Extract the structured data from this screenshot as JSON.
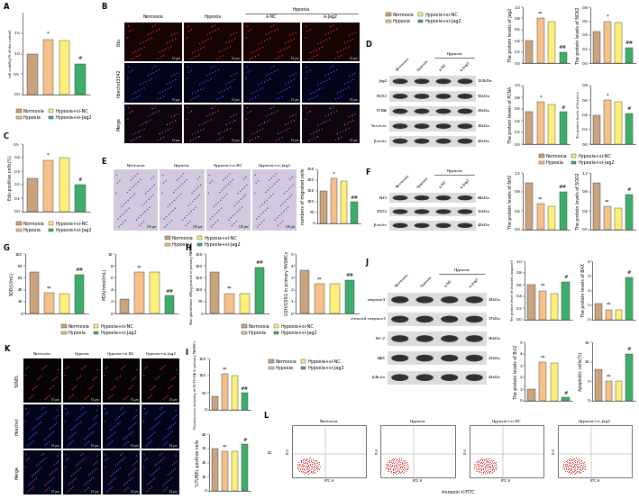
{
  "chart_data": [
    {
      "type": "bar",
      "ylabel": "cell viability(% of the control)",
      "categories": [
        "Normoxia",
        "Hypoxia",
        "Hypoxia+si-NC",
        "Hypoxia+si-Jag2"
      ],
      "values": [
        1.0,
        1.35,
        1.32,
        0.75
      ],
      "colors": [
        "#c9a27e",
        "#f5c08a",
        "#fdf07a",
        "#3dae6a"
      ],
      "ylim": [
        0,
        2.0
      ],
      "yticks": [
        0.0,
        0.5,
        1.0,
        1.5
      ],
      "tick_labels": "y",
      "annotations": [
        null,
        "*",
        null,
        "#"
      ],
      "legend": "center"
    },
    {
      "type": "bar",
      "ylabel": "Edu positive cells(%)",
      "categories": [
        "Normoxia",
        "Hypoxia",
        "Hypoxia+si-NC",
        "Hypoxia+si-Jag2"
      ],
      "values": [
        0.25,
        0.38,
        0.4,
        0.2
      ],
      "colors": [
        "#c9a27e",
        "#f5c08a",
        "#fdf07a",
        "#3dae6a"
      ],
      "ylim": [
        0,
        0.5
      ],
      "yticks": [
        0.0,
        0.1,
        0.2,
        0.3,
        0.4,
        0.5
      ],
      "tick_labels": "y",
      "annotations": [
        null,
        "*",
        null,
        "#"
      ],
      "legend": "center"
    },
    {
      "type": "bar",
      "ylabel": "The protein levels of Jag2",
      "categories": [
        "Normoxia",
        "Hypoxia",
        "Hypoxia+si-NC",
        "Hypoxia+si-Jag2"
      ],
      "values": [
        0.4,
        0.8,
        0.75,
        0.2
      ],
      "colors": [
        "#c9a27e",
        "#f5c08a",
        "#fdf07a",
        "#3dae6a"
      ],
      "ylim": [
        0,
        1.0
      ],
      "yticks": [
        0.0,
        0.2,
        0.4,
        0.6,
        0.8,
        1.0
      ],
      "tick_labels": "y",
      "annotations": [
        null,
        "**",
        null,
        "##"
      ],
      "legend": "center"
    },
    {
      "type": "bar",
      "ylabel": "The protein levels of NOX2",
      "categories": [
        "Normoxia",
        "Hypoxia",
        "Hypoxia+si-NC",
        "Hypoxia+si-Jag2"
      ],
      "values": [
        0.45,
        0.6,
        0.58,
        0.22
      ],
      "colors": [
        "#c9a27e",
        "#f5c08a",
        "#fdf07a",
        "#3dae6a"
      ],
      "ylim": [
        0,
        0.8
      ],
      "yticks": [
        0.0,
        0.2,
        0.4,
        0.6,
        0.8
      ],
      "tick_labels": "y",
      "annotations": [
        null,
        "*",
        null,
        "##"
      ]
    },
    {
      "type": "bar",
      "ylabel": "The protein levels of PCNA",
      "categories": [
        "Normoxia",
        "Hypoxia",
        "Hypoxia+si-NC",
        "Hypoxia+si-Jag2"
      ],
      "values": [
        0.55,
        0.72,
        0.68,
        0.55
      ],
      "colors": [
        "#c9a27e",
        "#f5c08a",
        "#fdf07a",
        "#3dae6a"
      ],
      "ylim": [
        0,
        1.0
      ],
      "yticks": [
        0.0,
        0.2,
        0.4,
        0.6,
        0.8,
        1.0
      ],
      "tick_labels": "y",
      "annotations": [
        null,
        "*",
        null,
        "#"
      ]
    },
    {
      "type": "bar",
      "ylabel": "The protein levels of Survivin",
      "categories": [
        "Normoxia",
        "Hypoxia",
        "Hypoxia+si-NC",
        "Hypoxia+si-Jag2"
      ],
      "values": [
        0.4,
        0.6,
        0.58,
        0.42
      ],
      "colors": [
        "#c9a27e",
        "#f5c08a",
        "#fdf07a",
        "#3dae6a"
      ],
      "ylim": [
        0,
        0.8
      ],
      "yticks": [
        0.0,
        0.2,
        0.4,
        0.6,
        0.8
      ],
      "tick_labels": "y",
      "annotations": [
        null,
        "*",
        null,
        "#"
      ]
    },
    {
      "type": "bar",
      "ylabel": "numbers of migrated cells",
      "categories": [
        "Normoxia",
        "Hypoxia",
        "Hypoxia+si-NC",
        "Hypoxia+si-Jag2"
      ],
      "values": [
        150,
        210,
        195,
        100
      ],
      "colors": [
        "#c9a27e",
        "#f5c08a",
        "#fdf07a",
        "#3dae6a"
      ],
      "ylim": [
        0,
        250
      ],
      "yticks": [
        0,
        50,
        100,
        150,
        200,
        250
      ],
      "tick_labels": "y",
      "annotations": [
        null,
        "*",
        null,
        "##"
      ],
      "legend": "center"
    },
    {
      "type": "bar",
      "ylabel": "The protein levels of Nrf2",
      "categories": [
        "Normoxia",
        "Hypoxia",
        "Hypoxia+si-NC",
        "Hypoxia+si-Jag2"
      ],
      "values": [
        1.0,
        0.55,
        0.5,
        0.8
      ],
      "colors": [
        "#c9a27e",
        "#f5c08a",
        "#fdf07a",
        "#3dae6a"
      ],
      "ylim": [
        0,
        1.2
      ],
      "yticks": [
        0.0,
        0.4,
        0.8,
        1.2
      ],
      "tick_labels": "y",
      "annotations": [
        null,
        "**",
        null,
        "##"
      ],
      "legend": "center"
    },
    {
      "type": "bar",
      "ylabel": "The protein levels of SOD2",
      "categories": [
        "Normoxia",
        "Hypoxia",
        "Hypoxia+si-NC",
        "Hypoxia+si-Jag2"
      ],
      "values": [
        1.0,
        0.5,
        0.45,
        0.75
      ],
      "colors": [
        "#c9a27e",
        "#f5c08a",
        "#fdf07a",
        "#3dae6a"
      ],
      "ylim": [
        0,
        1.2
      ],
      "yticks": [
        0.0,
        0.4,
        0.8,
        1.2
      ],
      "tick_labels": "y",
      "annotations": [
        null,
        "**",
        null,
        "#"
      ]
    },
    {
      "type": "bar",
      "ylabel": "SOD(U/mL)",
      "categories": [
        "Normoxia",
        "Hypoxia",
        "Hypoxia+si-NC",
        "Hypoxia+si-Jag2"
      ],
      "values": [
        70,
        35,
        33,
        65
      ],
      "colors": [
        "#c9a27e",
        "#f5c08a",
        "#fdf07a",
        "#3dae6a"
      ],
      "ylim": [
        0,
        100
      ],
      "yticks": [
        0,
        20,
        40,
        60,
        80,
        100
      ],
      "tick_labels": "y",
      "annotations": [
        null,
        "**",
        null,
        "##"
      ],
      "legend": "center"
    },
    {
      "type": "bar",
      "ylabel": "MDA(nmol/mL)",
      "categories": [
        "Normoxia",
        "Hypoxia",
        "Hypoxia+si-NC",
        "Hypoxia+si-Jag2"
      ],
      "values": [
        2.5,
        7,
        7,
        3
      ],
      "colors": [
        "#c9a27e",
        "#f5c08a",
        "#fdf07a",
        "#3dae6a"
      ],
      "ylim": [
        0,
        10
      ],
      "yticks": [
        0,
        2,
        4,
        6,
        8,
        10
      ],
      "tick_labels": "y",
      "annotations": [
        null,
        "**",
        null,
        "##"
      ]
    },
    {
      "type": "bar",
      "ylabel": "Total glutathione nM/μg protein in primary PASMCs",
      "categories": [
        "Normoxia",
        "Hypoxia",
        "Hypoxia+si-NC",
        "Hypoxia+si-Jag2"
      ],
      "values": [
        175,
        85,
        85,
        195
      ],
      "colors": [
        "#c9a27e",
        "#f5c08a",
        "#fdf07a",
        "#3dae6a"
      ],
      "ylim": [
        0,
        250
      ],
      "yticks": [
        0,
        50,
        100,
        150,
        200,
        250
      ],
      "tick_labels": "y",
      "annotations": [
        null,
        "**",
        null,
        "##"
      ],
      "legend": "center"
    },
    {
      "type": "bar",
      "ylabel": "GSH/GSSG in primary PASMCs",
      "categories": [
        "Normoxia",
        "Hypoxia",
        "Hypoxia+si-NC",
        "Hypoxia+si-Jag2"
      ],
      "values": [
        3.6,
        2.5,
        2.5,
        2.8
      ],
      "colors": [
        "#c9a27e",
        "#f5c08a",
        "#fdf07a",
        "#3dae6a"
      ],
      "ylim": [
        0,
        5
      ],
      "yticks": [
        0,
        1,
        2,
        3,
        4,
        5
      ],
      "tick_labels": "y",
      "annotations": [
        null,
        "**",
        null,
        "##"
      ]
    },
    {
      "type": "bar",
      "ylabel": "Fluorescence intensity of DCFH-DA in primary PASMCs",
      "categories": [
        "Normoxia",
        "Hypoxia",
        "Hypoxia+si-NC",
        "Hypoxia+si-Jag2"
      ],
      "values": [
        40,
        105,
        100,
        50
      ],
      "colors": [
        "#c9a27e",
        "#f5c08a",
        "#fdf07a",
        "#3dae6a"
      ],
      "ylim": [
        0,
        150
      ],
      "yticks": [
        0,
        50,
        100,
        150
      ],
      "tick_labels": "y",
      "annotations": [
        null,
        "**",
        null,
        "##"
      ],
      "legend": "center"
    },
    {
      "type": "bar",
      "ylabel": "%TUNEL positive cells",
      "categories": [
        "Normoxia",
        "Hypoxia",
        "Hypoxia+si-NC",
        "Hypoxia+si-Jag2"
      ],
      "values": [
        30,
        28,
        28,
        33
      ],
      "colors": [
        "#c9a27e",
        "#f5c08a",
        "#fdf07a",
        "#3dae6a"
      ],
      "ylim": [
        0,
        40
      ],
      "yticks": [
        0,
        10,
        20,
        30,
        40
      ],
      "tick_labels": "y",
      "annotations": [
        null,
        "**",
        null,
        "#"
      ]
    },
    {
      "type": "bar",
      "ylabel": "The protein level of cleaved-caspase3",
      "categories": [
        "Normoxia",
        "Hypoxia",
        "Hypoxia+si-NC",
        "Hypoxia+si-Jag2"
      ],
      "values": [
        0.6,
        0.5,
        0.45,
        0.65
      ],
      "colors": [
        "#c9a27e",
        "#f5c08a",
        "#fdf07a",
        "#3dae6a"
      ],
      "ylim": [
        0,
        1.0
      ],
      "yticks": [
        0.0,
        0.2,
        0.4,
        0.6,
        0.8,
        1.0
      ],
      "tick_labels": "y",
      "annotations": [
        null,
        "**",
        null,
        "#"
      ]
    },
    {
      "type": "bar",
      "ylabel": "The protein levels of BAX",
      "categories": [
        "Normoxia",
        "Hypoxia",
        "Hypoxia+si-NC",
        "Hypoxia+si-Jag2"
      ],
      "values": [
        1.1,
        0.7,
        0.7,
        2.9
      ],
      "colors": [
        "#c9a27e",
        "#f5c08a",
        "#fdf07a",
        "#3dae6a"
      ],
      "ylim": [
        0,
        4
      ],
      "yticks": [
        0,
        1,
        2,
        3,
        4
      ],
      "tick_labels": "y",
      "annotations": [
        null,
        "**",
        null,
        "#"
      ]
    },
    {
      "type": "bar",
      "ylabel": "The protein levels of Bcl2",
      "categories": [
        "Normoxia",
        "Hypoxia",
        "Hypoxia+si-NC",
        "Hypoxia+si-Jag2"
      ],
      "values": [
        1.0,
        3.3,
        3.2,
        0.3
      ],
      "colors": [
        "#c9a27e",
        "#f5c08a",
        "#fdf07a",
        "#3dae6a"
      ],
      "ylim": [
        0,
        5
      ],
      "yticks": [
        0,
        1,
        2,
        3,
        4,
        5
      ],
      "tick_labels": "y",
      "annotations": [
        null,
        "**",
        null,
        "#"
      ]
    },
    {
      "type": "bar",
      "ylabel": "Apoptotic cells(%)",
      "categories": [
        "Normoxia",
        "Hypoxia",
        "Hypoxia+si-NC",
        "Hypoxia+si-Jag2"
      ],
      "values": [
        8,
        5,
        5,
        12
      ],
      "colors": [
        "#c9a27e",
        "#f5c08a",
        "#fdf07a",
        "#3dae6a"
      ],
      "ylim": [
        0,
        15
      ],
      "yticks": [
        0,
        5,
        10,
        15
      ],
      "tick_labels": "y",
      "annotations": [
        null,
        "**",
        null,
        "#"
      ]
    }
  ],
  "figure": {
    "panel_labels": [
      "A",
      "B",
      "C",
      "D",
      "E",
      "F",
      "G",
      "H",
      "I",
      "J",
      "K",
      "L"
    ],
    "edu": {
      "group_header": "Hypoxia",
      "columns": [
        "Normoxia",
        "Hypoxia",
        "si-NC",
        "si-Jag2"
      ],
      "rows": [
        "Edu",
        "Hoechst3342",
        "Merge"
      ],
      "scale": "50 μm"
    },
    "migration": {
      "columns": [
        "Normoxia",
        "Hypoxia",
        "Hypoxia+si-NC",
        "Hypoxia+si-Jag2"
      ],
      "scale": "100 μm"
    },
    "tunel": {
      "columns": [
        "Normoxia",
        "Hypoxia",
        "Hypoxia+si-NC",
        "Hypoxia+si-Jag2"
      ],
      "rows": [
        "TUNEL",
        "Hoechst",
        "Merge"
      ],
      "scale": "50 μm"
    },
    "flow": {
      "columns": [
        "Normoxia",
        "Hypoxia",
        "Hypoxia+si-NC",
        "Hypoxia+si-Jag2"
      ],
      "ylabel": "PI",
      "xlabel": "Annexin V-FITC",
      "y_inner": "PI-H",
      "x_inner": "FITC-H"
    },
    "blots": [
      {
        "group_header": "Hypoxia",
        "lanes": [
          "Normoxia",
          "Hypoxia",
          "si-NC",
          "si-Jag2"
        ],
        "bands": [
          {
            "protein": "Jag2",
            "size": "133kDa"
          },
          {
            "protein": "NOX2",
            "size": "55kDa"
          },
          {
            "protein": "PCNA",
            "size": "29kDa"
          },
          {
            "protein": "Survivin",
            "size": "16kDa"
          },
          {
            "protein": "β-actin",
            "size": "42kDa"
          }
        ]
      },
      {
        "group_header": "Hypoxia",
        "lanes": [
          "Normoxia",
          "Hypoxia",
          "si-NC",
          "si-Jag2"
        ],
        "bands": [
          {
            "protein": "Nrf2",
            "size": "68kDa"
          },
          {
            "protein": "SOD2",
            "size": "25kDa"
          },
          {
            "protein": "β-actin",
            "size": "42kDa"
          }
        ]
      },
      {
        "group_header": "Hypoxia",
        "lanes": [
          "Normoxia",
          "Hypoxia",
          "si-NC",
          "si-Jag2"
        ],
        "bands": [
          {
            "protein": "caspase3",
            "size": "32kDa"
          },
          {
            "protein": "cleaved caspase3",
            "size": "17kDa"
          },
          {
            "protein": "Bcl-2",
            "size": "26kDa"
          },
          {
            "protein": "BAX",
            "size": "21kDa"
          },
          {
            "protein": "β-Actin",
            "size": "42kDa"
          }
        ]
      }
    ]
  }
}
